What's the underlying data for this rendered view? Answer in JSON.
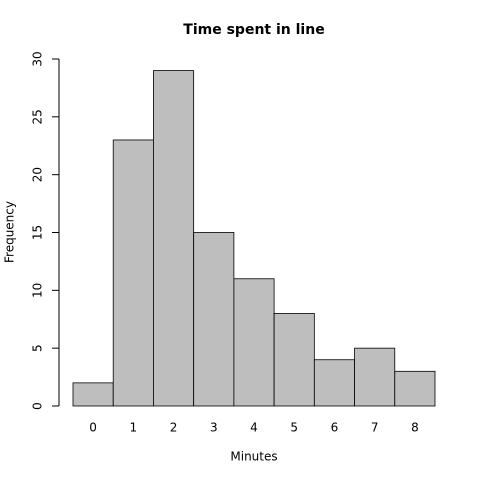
{
  "chart_data": {
    "type": "bar",
    "title": "Time spent in line",
    "x_label": "Minutes",
    "y_label": "Frequency",
    "categories": [
      "0",
      "1",
      "2",
      "3",
      "4",
      "5",
      "6",
      "7",
      "8"
    ],
    "values": [
      2,
      23,
      29,
      15,
      11,
      8,
      4,
      5,
      3
    ],
    "color": "#bebebe",
    "ylim": [
      0,
      30
    ],
    "yticks": [
      0,
      5,
      10,
      15,
      20,
      25,
      30
    ],
    "grid": false
  }
}
